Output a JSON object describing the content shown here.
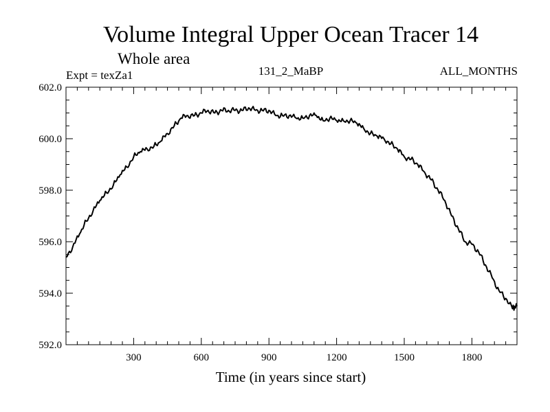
{
  "chart_data": {
    "type": "line",
    "title": "Volume Integral Upper Ocean Tracer 14",
    "subtitle": "Whole area",
    "experiment": "Expt = texZa1",
    "run_id": "131_2_MaBP",
    "period": "ALL_MONTHS",
    "xlabel": "Time (in years since start)",
    "ylabel": "",
    "xlim": [
      0,
      2000
    ],
    "ylim": [
      592.0,
      602.0
    ],
    "xticks": [
      300,
      600,
      900,
      1200,
      1500,
      1800
    ],
    "xtick_labels": [
      "300",
      "600",
      "900",
      "1200",
      "1500",
      "1800"
    ],
    "yticks": [
      592.0,
      594.0,
      596.0,
      598.0,
      600.0,
      602.0
    ],
    "ytick_labels": [
      "592.0",
      "594.0",
      "596.0",
      "598.0",
      "600.0",
      "602.0"
    ],
    "grid": false,
    "series": [
      {
        "name": "Upper Ocean Tracer 14",
        "x": [
          0,
          30,
          60,
          90,
          120,
          150,
          180,
          210,
          240,
          270,
          300,
          330,
          360,
          390,
          420,
          450,
          480,
          510,
          540,
          570,
          600,
          630,
          660,
          690,
          720,
          750,
          780,
          810,
          840,
          870,
          900,
          930,
          960,
          990,
          1020,
          1050,
          1080,
          1110,
          1140,
          1170,
          1200,
          1230,
          1260,
          1290,
          1320,
          1350,
          1380,
          1410,
          1440,
          1470,
          1500,
          1530,
          1560,
          1590,
          1620,
          1650,
          1680,
          1710,
          1740,
          1770,
          1800,
          1830,
          1860,
          1890,
          1920,
          1950,
          1980,
          2000
        ],
        "values": [
          595.4,
          595.8,
          596.3,
          596.8,
          597.2,
          597.6,
          597.9,
          598.2,
          598.6,
          598.9,
          599.3,
          599.5,
          599.6,
          599.7,
          599.9,
          600.2,
          600.5,
          600.8,
          600.9,
          600.9,
          601.0,
          601.1,
          601.0,
          601.1,
          601.1,
          601.1,
          601.1,
          601.2,
          601.1,
          601.1,
          601.1,
          600.9,
          600.9,
          600.9,
          600.8,
          600.8,
          600.9,
          600.9,
          600.7,
          600.8,
          600.7,
          600.7,
          600.7,
          600.6,
          600.4,
          600.2,
          600.1,
          600.0,
          599.8,
          599.6,
          599.3,
          599.2,
          599.0,
          598.7,
          598.4,
          598.0,
          597.6,
          597.0,
          596.5,
          596.0,
          595.9,
          595.6,
          595.1,
          594.6,
          594.1,
          593.8,
          593.4,
          593.5
        ]
      }
    ]
  }
}
